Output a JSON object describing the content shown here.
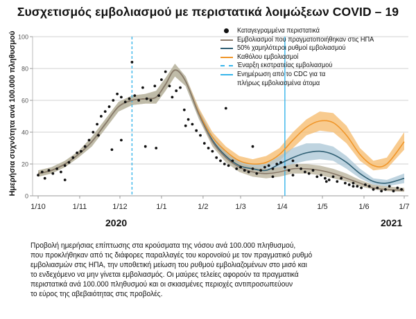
{
  "chart_data": {
    "type": "line",
    "title": "Συσχετισμός εμβολιασμού με περιστατικά λοιμώξεων COVID – 19",
    "ylabel": "Ημερήσια συχνότητα ανά 100.000 πληθυσμού",
    "xlabel": "",
    "ylim": [
      0,
      100
    ],
    "yticks": [
      0,
      20,
      40,
      60,
      80,
      100
    ],
    "xlim_days": [
      0,
      273
    ],
    "x_unit": "days since 1/10/2020",
    "xticks": [
      {
        "label": "1/10",
        "day": 0
      },
      {
        "label": "1/11",
        "day": 31
      },
      {
        "label": "1/12",
        "day": 61
      },
      {
        "label": "1/1",
        "day": 92
      },
      {
        "label": "1/2",
        "day": 123
      },
      {
        "label": "1/3",
        "day": 151
      },
      {
        "label": "1/4",
        "day": 182
      },
      {
        "label": "1/5",
        "day": 212
      },
      {
        "label": "1/6",
        "day": 243
      },
      {
        "label": "1/7",
        "day": 273
      }
    ],
    "year_labels": [
      "2020",
      "2021"
    ],
    "grid": true,
    "legend_position": "top-right",
    "legend": [
      {
        "label": "Καταγεγραμμένα περιστατικά",
        "symbol": "dot",
        "color": "#111111"
      },
      {
        "label": "Εμβολιασμοί που πραγματοποιήθηκαν στις ΗΠΑ",
        "symbol": "line",
        "color": "#8a7a6a"
      },
      {
        "label": "50% χαμηλότεροι ρυθμοί εμβολιασμού",
        "symbol": "line",
        "color": "#2f5f73"
      },
      {
        "label": "Καθόλου εμβολιασμοί",
        "symbol": "line",
        "color": "#f0962a"
      },
      {
        "label": "Έναρξη εκστρατείας εμβολιασμού",
        "symbol": "dashed",
        "color": "#35b4ea"
      },
      {
        "label": "Ενημέρωση από το CDC για τα",
        "label2": "πλήρως εμβολιασμένα άτομα",
        "symbol": "solid-vline",
        "color": "#35b4ea"
      }
    ],
    "vlines": [
      {
        "name": "vaccination-start",
        "day": 70,
        "style": "dashed",
        "color": "#35b4ea"
      },
      {
        "name": "cdc-update",
        "day": 184,
        "style": "solid",
        "color": "#35b4ea"
      }
    ],
    "x": [
      0,
      10,
      20,
      30,
      40,
      50,
      60,
      70,
      80,
      88,
      95,
      102,
      110,
      120,
      130,
      140,
      150,
      160,
      170,
      180,
      190,
      200,
      210,
      220,
      230,
      240,
      250,
      260,
      273
    ],
    "series": [
      {
        "name": "Καθόλου εμβολιασμοί",
        "color": "#f0962a",
        "band_color": "#f6b96a",
        "values": [
          14,
          16,
          20,
          26,
          34,
          45,
          56,
          60,
          61,
          62,
          70,
          79,
          72,
          52,
          37,
          28,
          22,
          20,
          21,
          26,
          35,
          43,
          47,
          46,
          38,
          26,
          19,
          20,
          34
        ],
        "lower": [
          12,
          14,
          18,
          24,
          31,
          42,
          53,
          57,
          58,
          58,
          66,
          75,
          69,
          49,
          34,
          25,
          19,
          17,
          18,
          22,
          30,
          38,
          41,
          40,
          33,
          22,
          16,
          17,
          29
        ],
        "upper": [
          16,
          18,
          22,
          28,
          37,
          48,
          59,
          63,
          64,
          66,
          74,
          83,
          75,
          55,
          40,
          31,
          25,
          23,
          25,
          30,
          40,
          48,
          53,
          52,
          44,
          30,
          22,
          24,
          40
        ]
      },
      {
        "name": "50% χαμηλότεροι ρυθμοί εμβολιασμού",
        "color": "#2f5f73",
        "band_color": "#a9c6d6",
        "values": [
          14,
          16,
          20,
          26,
          34,
          45,
          56,
          60,
          61,
          62,
          70,
          79,
          72,
          51,
          35,
          25,
          19,
          17,
          16,
          20,
          24,
          27,
          28,
          26,
          21,
          14,
          9,
          8,
          11
        ],
        "lower": [
          12,
          14,
          18,
          24,
          31,
          42,
          53,
          57,
          58,
          58,
          66,
          75,
          69,
          48,
          32,
          22,
          16,
          14,
          13,
          16,
          20,
          22,
          23,
          22,
          17,
          11,
          7,
          6,
          8
        ],
        "upper": [
          16,
          18,
          22,
          28,
          37,
          48,
          59,
          63,
          64,
          66,
          74,
          83,
          75,
          54,
          38,
          28,
          22,
          20,
          20,
          25,
          30,
          33,
          33,
          31,
          25,
          17,
          11,
          10,
          14
        ]
      },
      {
        "name": "Εμβολιασμοί που πραγματοποιήθηκαν στις ΗΠΑ",
        "color": "#8a7a6a",
        "band_color": "#bfb8a3",
        "values": [
          14,
          16,
          20,
          26,
          34,
          45,
          56,
          60,
          61,
          62,
          70,
          79,
          72,
          51,
          34,
          24,
          18,
          15,
          14,
          15,
          17,
          17,
          16,
          14,
          11,
          8,
          5,
          4,
          3.5
        ],
        "lower": [
          12,
          14,
          18,
          24,
          31,
          42,
          53,
          57,
          58,
          58,
          66,
          75,
          69,
          48,
          31,
          21,
          15,
          12,
          11,
          12,
          14,
          14,
          13,
          11,
          9,
          6,
          4,
          3,
          2.5
        ],
        "upper": [
          16,
          18,
          22,
          28,
          37,
          48,
          59,
          63,
          64,
          66,
          74,
          83,
          75,
          54,
          37,
          27,
          21,
          18,
          17,
          18,
          20,
          20,
          19,
          17,
          14,
          10,
          7,
          6,
          5
        ]
      }
    ],
    "observed_points": {
      "name": "Καταγεγραμμένα περιστατικά",
      "days": [
        0,
        3,
        5,
        8,
        11,
        14,
        17,
        20,
        23,
        26,
        29,
        32,
        35,
        38,
        41,
        44,
        47,
        50,
        53,
        56,
        59,
        62,
        65,
        68,
        70,
        72,
        75,
        78,
        81,
        84,
        87,
        90,
        92,
        95,
        98,
        100,
        103,
        106,
        109,
        112,
        115,
        118,
        121,
        124,
        127,
        130,
        133,
        136,
        139,
        142,
        145,
        148,
        151,
        154,
        157,
        160,
        163,
        166,
        169,
        172,
        175,
        178,
        181,
        184,
        187,
        190,
        193,
        196,
        199,
        202,
        205,
        208,
        211,
        214,
        217,
        220,
        223,
        226,
        229,
        232,
        235,
        238,
        241,
        244,
        247,
        250,
        253,
        256,
        259,
        262,
        265,
        268,
        271,
        20,
        45,
        55,
        62,
        80,
        88,
        110,
        140,
        160,
        175,
        190,
        215,
        235
      ],
      "values": [
        13,
        15,
        11,
        16,
        14,
        17,
        15,
        19,
        21,
        24,
        27,
        28,
        31,
        35,
        40,
        45,
        50,
        53,
        56,
        60,
        64,
        62,
        59,
        61,
        84,
        63,
        60,
        68,
        61,
        60,
        69,
        63,
        73,
        78,
        69,
        62,
        66,
        68,
        54,
        48,
        45,
        41,
        38,
        33,
        30,
        28,
        24,
        22,
        20,
        19,
        22,
        17,
        18,
        16,
        15,
        17,
        14,
        16,
        18,
        19,
        17,
        20,
        21,
        18,
        16,
        22,
        19,
        17,
        15,
        14,
        16,
        12,
        13,
        11,
        10,
        12,
        9,
        11,
        8,
        7,
        8,
        6,
        5,
        7,
        6,
        4,
        5,
        3,
        4,
        6,
        3,
        5,
        4,
        10,
        38,
        29,
        35,
        31,
        30,
        44,
        55,
        31,
        12,
        13,
        9,
        6
      ]
    }
  },
  "caption": {
    "lines": [
      "Προβολή ημερήσιας επίπτωσης στα κρούσματα της νόσου ανά 100.000 πληθυσμού,",
      "που προκλήθηκαν από τις διάφορες παραλλαγές του κορονοϊού με τον πραγματικό ρυθμό",
      "εμβολιασμών στις ΗΠΑ, την υποθετική μείωση του ρυθμού εμβολιαζομένων στο μισό και",
      "το ενδεχόμενο να μην γίνεται εμβολιασμός. Οι μαύρες τελείες αφορούν τα πραγματικά",
      "περιστατικά ανά 100.000 πληθυσμού και οι σκιασμένες περιοχές αντιπροσωπεύουν",
      "το εύρος της αβεβαιότητας στις προβολές."
    ]
  }
}
